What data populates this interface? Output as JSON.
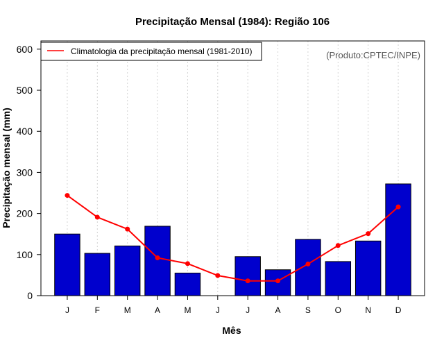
{
  "chart_data": {
    "type": "bar",
    "title": "Precipitação Mensal (1984): Região 106",
    "xlabel": "Mês",
    "ylabel": "Precipitação mensal (mm)",
    "ylim": [
      0,
      620
    ],
    "yticks": [
      0,
      100,
      200,
      300,
      400,
      500,
      600
    ],
    "categories": [
      "J",
      "F",
      "M",
      "A",
      "M",
      "J",
      "J",
      "A",
      "S",
      "O",
      "N",
      "D"
    ],
    "series": [
      {
        "name": "Precipitação mensal 1984",
        "type": "bar",
        "color": "#0000cd",
        "values": [
          150,
          103,
          121,
          169,
          55,
          0,
          95,
          63,
          137,
          83,
          133,
          272
        ]
      },
      {
        "name": "Climatologia da precipitação mensal (1981-2010)",
        "type": "line",
        "color": "#ff0000",
        "values": [
          244,
          191,
          162,
          92,
          78,
          49,
          36,
          36,
          77,
          122,
          151,
          216
        ]
      }
    ],
    "legend": {
      "position": "top-left",
      "entries": [
        "Climatologia da precipitação mensal (1981-2010)"
      ]
    },
    "annotation": "(Produto:CPTEC/INPE)",
    "grid": "vertical dotted"
  }
}
